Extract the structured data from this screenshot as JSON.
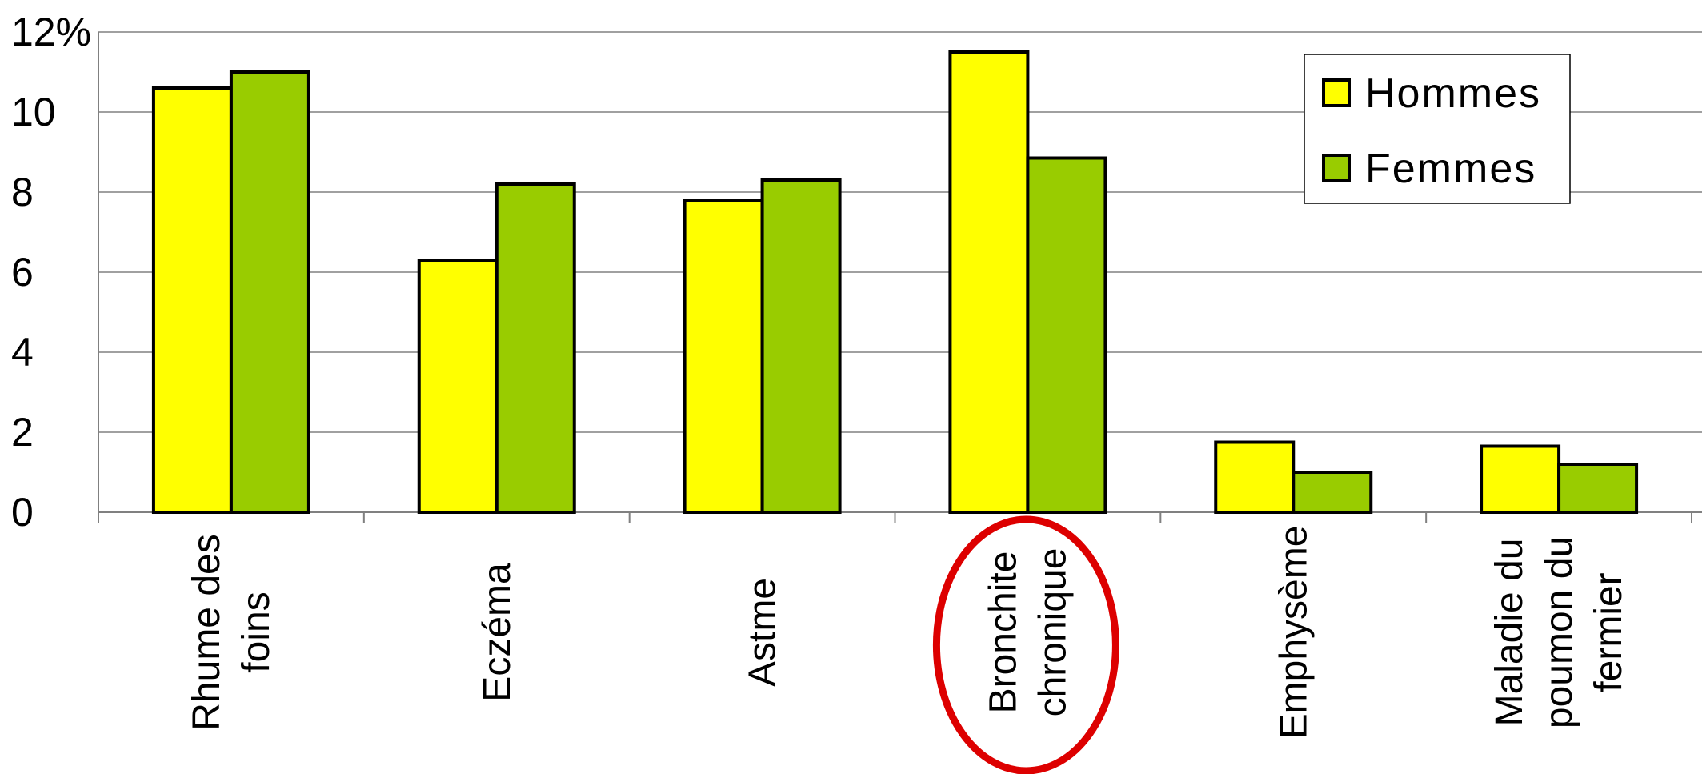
{
  "chart_data": {
    "type": "bar",
    "y_unit_label": "%",
    "ylim": [
      0,
      12
    ],
    "yticks": [
      "0",
      "2",
      "4",
      "6",
      "8",
      "10",
      "12"
    ],
    "grid": true,
    "legend_position": "top-right",
    "categories": [
      [
        "Rhume des",
        "foins"
      ],
      [
        "Eczéma"
      ],
      [
        "Astme"
      ],
      [
        "Bronchite",
        "chronique"
      ],
      [
        "Emphysème"
      ],
      [
        "Maladie du",
        "poumon du",
        "fermier"
      ]
    ],
    "highlighted_category": 3,
    "series": [
      {
        "name": "Hommes",
        "color": "#ffff00",
        "values": [
          10.6,
          6.3,
          7.8,
          11.5,
          1.75,
          1.65
        ]
      },
      {
        "name": "Femmes",
        "color": "#99cc00",
        "values": [
          11.0,
          8.2,
          8.3,
          8.85,
          1.0,
          1.2
        ]
      }
    ],
    "highlight_color": "#dd0000"
  }
}
